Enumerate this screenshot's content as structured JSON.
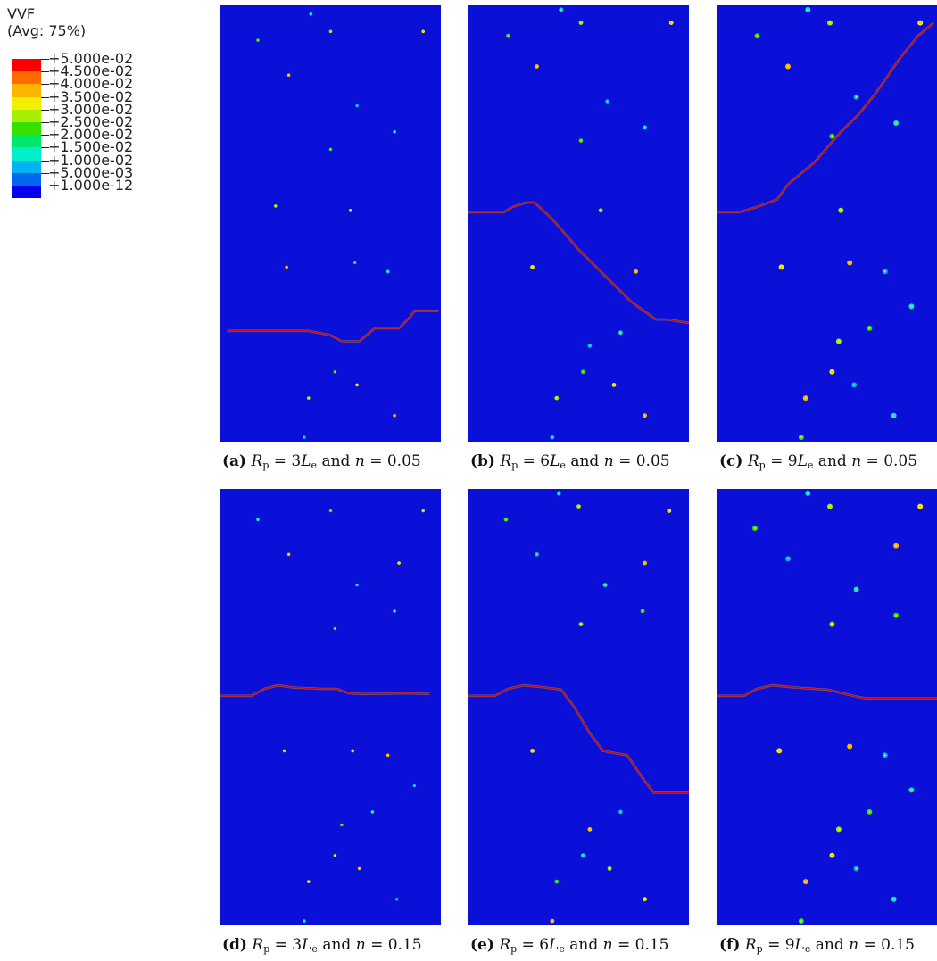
{
  "legend": {
    "title": "VVF",
    "subtitle": "(Avg: 75%)",
    "levels": [
      "+5.000e-02",
      "+4.500e-02",
      "+4.000e-02",
      "+3.500e-02",
      "+3.000e-02",
      "+2.500e-02",
      "+2.000e-02",
      "+1.500e-02",
      "+1.000e-02",
      "+5.000e-03",
      "+1.000e-12"
    ],
    "colors": [
      "#ff0000",
      "#ff6a00",
      "#ffb400",
      "#f2ee00",
      "#a4f000",
      "#36e000",
      "#00e86c",
      "#00f0cc",
      "#00b4f4",
      "#0066f0",
      "#0000ee"
    ],
    "background_color": "#0a10d8",
    "crack_color": "#d00000"
  },
  "panels": [
    {
      "label": "(a)",
      "rsym": "R",
      "rsub": "p",
      "eq1": " = 3",
      "lsym": "L",
      "lsub": "e",
      "mid": " and ",
      "nsym": "n",
      "eq2": " = 0.05",
      "crack": [
        [
          0.03,
          0.746
        ],
        [
          0.4,
          0.746
        ],
        [
          0.5,
          0.756
        ],
        [
          0.55,
          0.77
        ],
        [
          0.63,
          0.77
        ],
        [
          0.7,
          0.74
        ],
        [
          0.81,
          0.74
        ],
        [
          0.86,
          0.715
        ],
        [
          0.88,
          0.7
        ],
        [
          0.93,
          0.7
        ],
        [
          0.99,
          0.7
        ]
      ],
      "dots": [
        [
          0.41,
          0.02
        ],
        [
          0.17,
          0.08
        ],
        [
          0.5,
          0.06
        ],
        [
          0.92,
          0.06
        ],
        [
          0.31,
          0.16
        ],
        [
          0.62,
          0.23
        ],
        [
          0.79,
          0.29
        ],
        [
          0.5,
          0.33
        ],
        [
          0.25,
          0.46
        ],
        [
          0.59,
          0.47
        ],
        [
          0.3,
          0.6
        ],
        [
          0.61,
          0.59
        ],
        [
          0.76,
          0.61
        ],
        [
          0.52,
          0.84
        ],
        [
          0.4,
          0.9
        ],
        [
          0.62,
          0.87
        ],
        [
          0.79,
          0.94
        ],
        [
          0.38,
          0.99
        ]
      ]
    },
    {
      "label": "(b)",
      "rsym": "R",
      "rsub": "p",
      "eq1": " = 6",
      "lsym": "L",
      "lsub": "e",
      "mid": " and ",
      "nsym": "n",
      "eq2": " = 0.05",
      "crack": [
        [
          0.0,
          0.474
        ],
        [
          0.16,
          0.474
        ],
        [
          0.2,
          0.462
        ],
        [
          0.26,
          0.452
        ],
        [
          0.3,
          0.452
        ],
        [
          0.38,
          0.49
        ],
        [
          0.5,
          0.56
        ],
        [
          0.62,
          0.62
        ],
        [
          0.74,
          0.68
        ],
        [
          0.85,
          0.72
        ],
        [
          0.9,
          0.72
        ],
        [
          1.0,
          0.728
        ]
      ],
      "dots": [
        [
          0.42,
          0.01
        ],
        [
          0.18,
          0.07
        ],
        [
          0.51,
          0.04
        ],
        [
          0.92,
          0.04
        ],
        [
          0.31,
          0.14
        ],
        [
          0.63,
          0.22
        ],
        [
          0.8,
          0.28
        ],
        [
          0.51,
          0.31
        ],
        [
          0.6,
          0.47
        ],
        [
          0.29,
          0.6
        ],
        [
          0.76,
          0.61
        ],
        [
          0.55,
          0.78
        ],
        [
          0.69,
          0.75
        ],
        [
          0.52,
          0.84
        ],
        [
          0.4,
          0.9
        ],
        [
          0.66,
          0.87
        ],
        [
          0.8,
          0.94
        ],
        [
          0.38,
          0.99
        ]
      ]
    },
    {
      "label": "(c)",
      "rsym": "R",
      "rsub": "p",
      "eq1": " = 9",
      "lsym": "L",
      "lsub": "e",
      "mid": " and ",
      "nsym": "n",
      "eq2": " = 0.05",
      "crack": [
        [
          0.0,
          0.474
        ],
        [
          0.1,
          0.474
        ],
        [
          0.18,
          0.462
        ],
        [
          0.27,
          0.445
        ],
        [
          0.32,
          0.41
        ],
        [
          0.44,
          0.36
        ],
        [
          0.56,
          0.29
        ],
        [
          0.64,
          0.25
        ],
        [
          0.72,
          0.2
        ],
        [
          0.83,
          0.12
        ],
        [
          0.91,
          0.07
        ],
        [
          0.98,
          0.04
        ]
      ],
      "dots": [
        [
          0.41,
          0.01
        ],
        [
          0.18,
          0.07
        ],
        [
          0.51,
          0.04
        ],
        [
          0.92,
          0.04
        ],
        [
          0.32,
          0.14
        ],
        [
          0.63,
          0.21
        ],
        [
          0.81,
          0.27
        ],
        [
          0.52,
          0.3
        ],
        [
          0.56,
          0.47
        ],
        [
          0.29,
          0.6
        ],
        [
          0.6,
          0.59
        ],
        [
          0.76,
          0.61
        ],
        [
          0.88,
          0.69
        ],
        [
          0.69,
          0.74
        ],
        [
          0.55,
          0.77
        ],
        [
          0.52,
          0.84
        ],
        [
          0.4,
          0.9
        ],
        [
          0.62,
          0.87
        ],
        [
          0.8,
          0.94
        ],
        [
          0.38,
          0.99
        ]
      ]
    },
    {
      "label": "(d)",
      "rsym": "R",
      "rsub": "p",
      "eq1": " = 3",
      "lsym": "L",
      "lsub": "e",
      "mid": " and ",
      "nsym": "n",
      "eq2": " = 0.15",
      "crack": [
        [
          0.0,
          0.474
        ],
        [
          0.14,
          0.474
        ],
        [
          0.2,
          0.458
        ],
        [
          0.26,
          0.45
        ],
        [
          0.33,
          0.455
        ],
        [
          0.46,
          0.458
        ],
        [
          0.53,
          0.458
        ],
        [
          0.58,
          0.468
        ],
        [
          0.65,
          0.47
        ],
        [
          0.85,
          0.468
        ],
        [
          0.95,
          0.47
        ]
      ],
      "dots": [
        [
          0.17,
          0.07
        ],
        [
          0.5,
          0.05
        ],
        [
          0.92,
          0.05
        ],
        [
          0.81,
          0.17
        ],
        [
          0.31,
          0.15
        ],
        [
          0.62,
          0.22
        ],
        [
          0.79,
          0.28
        ],
        [
          0.52,
          0.32
        ],
        [
          0.29,
          0.6
        ],
        [
          0.6,
          0.6
        ],
        [
          0.76,
          0.61
        ],
        [
          0.88,
          0.68
        ],
        [
          0.69,
          0.74
        ],
        [
          0.55,
          0.77
        ],
        [
          0.52,
          0.84
        ],
        [
          0.4,
          0.9
        ],
        [
          0.63,
          0.87
        ],
        [
          0.8,
          0.94
        ],
        [
          0.38,
          0.99
        ]
      ]
    },
    {
      "label": "(e)",
      "rsym": "R",
      "rsub": "p",
      "eq1": " = 6",
      "lsym": "L",
      "lsub": "e",
      "mid": " and ",
      "nsym": "n",
      "eq2": " = 0.15",
      "crack": [
        [
          0.0,
          0.474
        ],
        [
          0.12,
          0.474
        ],
        [
          0.18,
          0.458
        ],
        [
          0.25,
          0.45
        ],
        [
          0.35,
          0.455
        ],
        [
          0.42,
          0.46
        ],
        [
          0.48,
          0.5
        ],
        [
          0.55,
          0.56
        ],
        [
          0.61,
          0.6
        ],
        [
          0.66,
          0.605
        ],
        [
          0.72,
          0.61
        ],
        [
          0.76,
          0.64
        ],
        [
          0.8,
          0.67
        ],
        [
          0.84,
          0.696
        ],
        [
          0.9,
          0.696
        ],
        [
          1.0,
          0.696
        ]
      ],
      "dots": [
        [
          0.41,
          0.01
        ],
        [
          0.17,
          0.07
        ],
        [
          0.5,
          0.04
        ],
        [
          0.91,
          0.05
        ],
        [
          0.8,
          0.17
        ],
        [
          0.31,
          0.15
        ],
        [
          0.62,
          0.22
        ],
        [
          0.79,
          0.28
        ],
        [
          0.51,
          0.31
        ],
        [
          0.29,
          0.6
        ],
        [
          0.55,
          0.78
        ],
        [
          0.69,
          0.74
        ],
        [
          0.52,
          0.84
        ],
        [
          0.4,
          0.9
        ],
        [
          0.64,
          0.87
        ],
        [
          0.8,
          0.94
        ],
        [
          0.38,
          0.99
        ]
      ]
    },
    {
      "label": "(f)",
      "rsym": "R",
      "rsub": "p",
      "eq1": " = 9",
      "lsym": "L",
      "lsub": "e",
      "mid": " and ",
      "nsym": "n",
      "eq2": " = 0.15",
      "crack": [
        [
          0.0,
          0.474
        ],
        [
          0.12,
          0.474
        ],
        [
          0.18,
          0.458
        ],
        [
          0.25,
          0.45
        ],
        [
          0.35,
          0.455
        ],
        [
          0.5,
          0.46
        ],
        [
          0.58,
          0.47
        ],
        [
          0.65,
          0.478
        ],
        [
          0.68,
          0.48
        ],
        [
          1.0,
          0.48
        ]
      ],
      "dots": [
        [
          0.41,
          0.01
        ],
        [
          0.17,
          0.09
        ],
        [
          0.51,
          0.04
        ],
        [
          0.92,
          0.04
        ],
        [
          0.81,
          0.13
        ],
        [
          0.32,
          0.16
        ],
        [
          0.63,
          0.23
        ],
        [
          0.81,
          0.29
        ],
        [
          0.52,
          0.31
        ],
        [
          0.28,
          0.6
        ],
        [
          0.6,
          0.59
        ],
        [
          0.76,
          0.61
        ],
        [
          0.88,
          0.69
        ],
        [
          0.69,
          0.74
        ],
        [
          0.55,
          0.78
        ],
        [
          0.52,
          0.84
        ],
        [
          0.4,
          0.9
        ],
        [
          0.63,
          0.87
        ],
        [
          0.8,
          0.94
        ],
        [
          0.38,
          0.99
        ]
      ]
    }
  ]
}
